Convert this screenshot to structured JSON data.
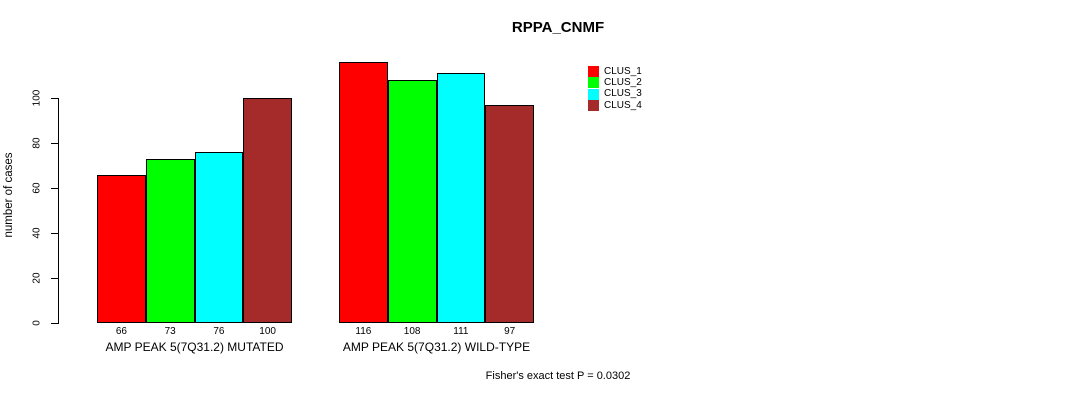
{
  "page": {
    "background": "#FFFFFF",
    "text_color": "#000000",
    "axis_color": "#000000"
  },
  "chart_data": {
    "type": "bar",
    "title": "RPPA_CNMF",
    "ylabel": "number of cases",
    "xlabel": "",
    "categories": [
      "AMP PEAK 5(7Q31.2) MUTATED",
      "AMP PEAK 5(7Q31.2) WILD-TYPE"
    ],
    "series": [
      {
        "name": "CLUS_1",
        "color": "#FF0000",
        "values": [
          66,
          116
        ]
      },
      {
        "name": "CLUS_2",
        "color": "#00FF00",
        "values": [
          73,
          108
        ]
      },
      {
        "name": "CLUS_3",
        "color": "#00FFFF",
        "values": [
          76,
          111
        ]
      },
      {
        "name": "CLUS_4",
        "color": "#A52A2A",
        "values": [
          100,
          97
        ]
      }
    ],
    "yticks": [
      0,
      20,
      40,
      60,
      80,
      100
    ],
    "ylim": [
      0,
      120
    ],
    "grid": false,
    "show_bar_value_labels": true,
    "legend": {
      "position": "right",
      "entries": [
        "CLUS_1",
        "CLUS_2",
        "CLUS_3",
        "CLUS_4"
      ]
    },
    "annotation": "Fisher's exact test P = 0.0302"
  }
}
